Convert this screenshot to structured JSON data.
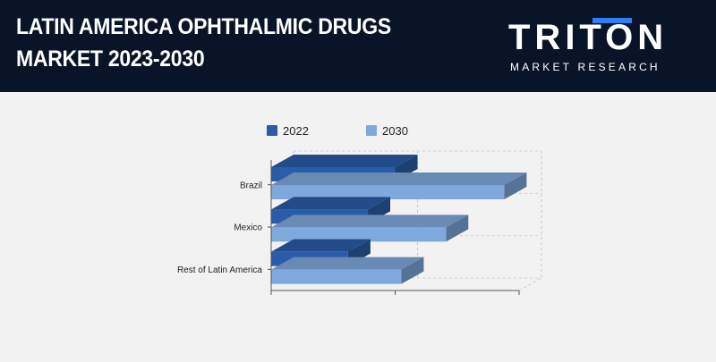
{
  "header": {
    "title_line1": "LATIN AMERICA OPHTHALMIC DRUGS",
    "title_line2": "MARKET 2023-2030"
  },
  "logo": {
    "name": "TRITON",
    "subtitle": "MARKET RESEARCH"
  },
  "colors": {
    "header_bg": "#0a1428",
    "logo_accent": "#2f7ef6",
    "series_2022": "#2a5ca8",
    "series_2030": "#7fa8dc"
  },
  "chart_data": {
    "type": "bar",
    "orientation": "horizontal",
    "three_d": true,
    "categories": [
      "Brazil",
      "Mexico",
      "Rest of Latin America"
    ],
    "series": [
      {
        "name": "2022",
        "values": [
          1.0,
          0.78,
          0.62
        ]
      },
      {
        "name": "2030",
        "values": [
          1.88,
          1.41,
          1.05
        ]
      }
    ],
    "xlim": [
      0,
      2
    ],
    "x_tick_labels_shown": false,
    "legend_position": "top",
    "grid": true
  }
}
